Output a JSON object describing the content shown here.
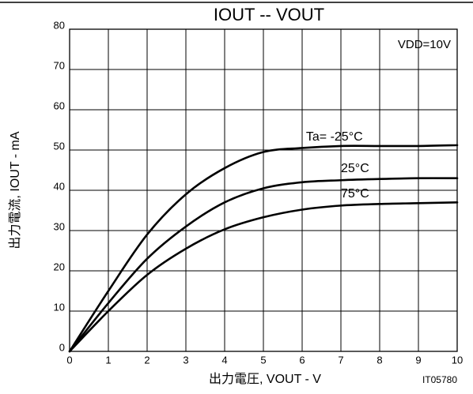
{
  "chart_data": {
    "type": "line",
    "title": "IOUT -- VOUT",
    "x_label": "出力電圧, VOUT - V",
    "y_label": "出力電流, IOUT - mA",
    "annotations": [
      "VDD=10V",
      "IT05780"
    ],
    "x": [
      0,
      1,
      2,
      3,
      4,
      5,
      6,
      7,
      8,
      9,
      10
    ],
    "series": [
      {
        "name": "Ta= -25°C",
        "color": "#000000",
        "values": [
          0,
          15,
          29,
          39,
          45.5,
          49.5,
          50.5,
          51,
          51,
          51,
          51.2
        ]
      },
      {
        "name": "25°C",
        "color": "#000000",
        "values": [
          0,
          12,
          23,
          31,
          37,
          40.5,
          42,
          42.5,
          42.8,
          43,
          43
        ]
      },
      {
        "name": "75°C",
        "color": "#000000",
        "values": [
          0,
          10,
          19,
          25.5,
          30.3,
          33.3,
          35.2,
          36.2,
          36.6,
          36.8,
          37
        ]
      }
    ],
    "xlim": [
      0,
      10
    ],
    "xticks": [
      0,
      1,
      2,
      3,
      4,
      5,
      6,
      7,
      8,
      9,
      10
    ],
    "ylim": [
      0,
      80
    ],
    "yticks": [
      0,
      10,
      20,
      30,
      40,
      50,
      60,
      70,
      80
    ],
    "grid": true
  }
}
